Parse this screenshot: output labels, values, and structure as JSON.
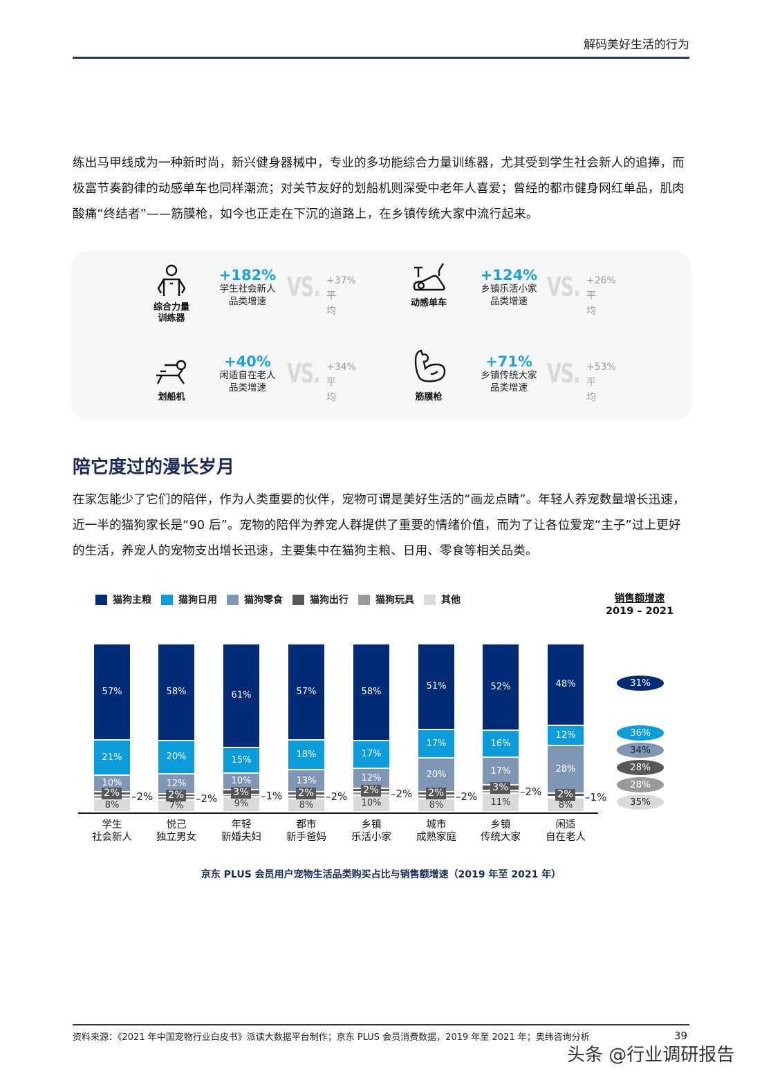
{
  "header": {
    "title": "解码美好生活的行为"
  },
  "intro_paragraph": "练出马甲线成为一种新时尚，新兴健身器械中，专业的多功能综合力量训练器，尤其受到学生社会新人的追捧，而极富节奏韵律的动感单车也同样潮流；对关节友好的划船机则深受中老年人喜爱；曾经的都市健身网红单品，肌肉酸痛“终结者”——筋膜枪，如今也正走在下沉的道路上，在乡镇传统大家中流行起来。",
  "stats_panel": {
    "vs_label": "VS.",
    "avg_label": "平均",
    "items": [
      {
        "icon": "strength-trainer-icon",
        "name": "综合力量\n训练器",
        "growth": "+182%",
        "segment": "学生社会新人",
        "sub": "品类增速",
        "average": "+37%"
      },
      {
        "icon": "spin-bike-icon",
        "name": "动感单车",
        "growth": "+124%",
        "segment": "乡镇乐活小家",
        "sub": "品类增速",
        "average": "+26%"
      },
      {
        "icon": "rowing-machine-icon",
        "name": "划船机",
        "growth": "+40%",
        "segment": "闲适自在老人",
        "sub": "品类增速",
        "average": "+34%"
      },
      {
        "icon": "flexed-arm-icon",
        "name": "筋膜枪",
        "growth": "+71%",
        "segment": "乡镇传统大家",
        "sub": "品类增速",
        "average": "+53%"
      }
    ]
  },
  "section": {
    "title": "陪它度过的漫长岁月",
    "paragraph": "在家怎能少了它们的陪伴，作为人类重要的伙伴，宠物可谓是美好生活的“画龙点睛”。年轻人养宠数量增长迅速，近一半的猫狗家长是“90 后”。宠物的陪伴为养宠人群提供了重要的情绪价值，而为了让各位爱宠“主子”过上更好的生活，养宠人的宠物支出增长迅速，主要集中在猫狗主粮、日用、零食等相关品类。"
  },
  "chart_data": {
    "type": "bar",
    "stacked": true,
    "normalized": true,
    "title": "京东 PLUS 会员用户宠物生活品类购买占比与销售额增速（2019 年至 2021 年）",
    "xlabel": "",
    "ylabel": "",
    "ylim": [
      0,
      100
    ],
    "legend_position": "top",
    "categories": [
      "学生\n社会新人",
      "悦己\n独立男女",
      "年轻\n新婚夫妇",
      "都市\n新手爸妈",
      "乡镇\n乐活小家",
      "城市\n成熟家庭",
      "乡镇\n传统大家",
      "闲适\n自在老人"
    ],
    "series": [
      {
        "name": "猫狗主粮",
        "color": "#002c77",
        "values": [
          57,
          58,
          61,
          57,
          58,
          51,
          52,
          48
        ]
      },
      {
        "name": "猫狗日用",
        "color": "#0b9ddb",
        "values": [
          21,
          20,
          15,
          18,
          17,
          17,
          16,
          12
        ]
      },
      {
        "name": "猫狗零食",
        "color": "#7f96b5",
        "values": [
          10,
          12,
          10,
          13,
          12,
          20,
          17,
          28
        ]
      },
      {
        "name": "猫狗出行",
        "color": "#575757",
        "values": [
          2,
          2,
          3,
          2,
          2,
          2,
          3,
          2
        ]
      },
      {
        "name": "猫狗玩具",
        "color": "#999999",
        "values": [
          2,
          2,
          1,
          2,
          2,
          2,
          2,
          1
        ]
      },
      {
        "name": "其他",
        "color": "#d9d9d9",
        "values": [
          8,
          7,
          9,
          8,
          10,
          8,
          11,
          8
        ]
      }
    ],
    "growth_header": [
      "销售额增速",
      "2019 – 2021"
    ],
    "growth_rates": [
      {
        "series": "猫狗主粮",
        "value": "31%"
      },
      {
        "series": "猫狗日用",
        "value": "36%"
      },
      {
        "series": "猫狗零食",
        "value": "34%"
      },
      {
        "series": "猫狗出行",
        "value": "28%"
      },
      {
        "series": "猫狗玩具",
        "value": "28%"
      },
      {
        "series": "其他",
        "value": "35%"
      }
    ]
  },
  "footer": {
    "source": "资料来源：《2021 年中国宠物行业白皮书》派读大数据平台制作；京东 PLUS 会员消费数据，2019 年至 2021 年；奥纬咨询分析",
    "page_number": "39",
    "watermark": "头条 @行业调研报告"
  }
}
